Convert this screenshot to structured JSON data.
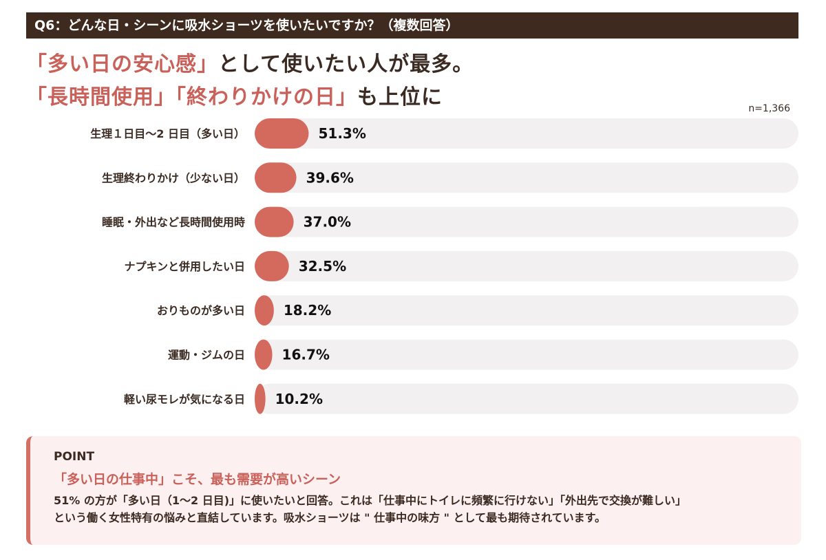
{
  "question": "Q6：どんな日・シーンに吸水ショーツを使いたいですか？（複数回答）",
  "headline": {
    "line1_hl": "「多い日の安心感」",
    "line1_rest": "として使いたい人が最多。",
    "line2_hl1": "「長時間使用」",
    "line2_hl2": "「終わりかけの日」",
    "line2_rest": "も上位に"
  },
  "sample": "n=1,366",
  "colors": {
    "bar": "#d46a5e",
    "track": "#f3f0f1",
    "accent": "#c9615a",
    "header_bg": "#3f2a1f"
  },
  "chart_data": {
    "type": "bar",
    "orientation": "horizontal",
    "categories": [
      "生理１日目〜2 日目（多い日）",
      "生理終わりかけ（少ない日）",
      "睡眠・外出など長時間使用時",
      "ナプキンと併用したい日",
      "おりものが多い日",
      "運動・ジムの日",
      "軽い尿モレが気になる日"
    ],
    "values": [
      51.3,
      39.6,
      37.0,
      32.5,
      18.2,
      16.7,
      10.2
    ],
    "value_labels": [
      "51.3%",
      "39.6%",
      "37.0%",
      "32.5%",
      "18.2%",
      "16.7%",
      "10.2%"
    ],
    "xlim": [
      0,
      100
    ],
    "unit": "%"
  },
  "point": {
    "label": "POINT",
    "heading": "「多い日の仕事中」こそ、最も需要が高いシーン",
    "body_line1": "51% の方が「多い日（1〜2 日目)」に使いたいと回答。これは「仕事中にトイレに頻繁に行けない」「外出先で交換が難しい」",
    "body_line2": "という働く女性特有の悩みと直結しています。吸水ショーツは \" 仕事中の味方 \" として最も期待されています。"
  }
}
